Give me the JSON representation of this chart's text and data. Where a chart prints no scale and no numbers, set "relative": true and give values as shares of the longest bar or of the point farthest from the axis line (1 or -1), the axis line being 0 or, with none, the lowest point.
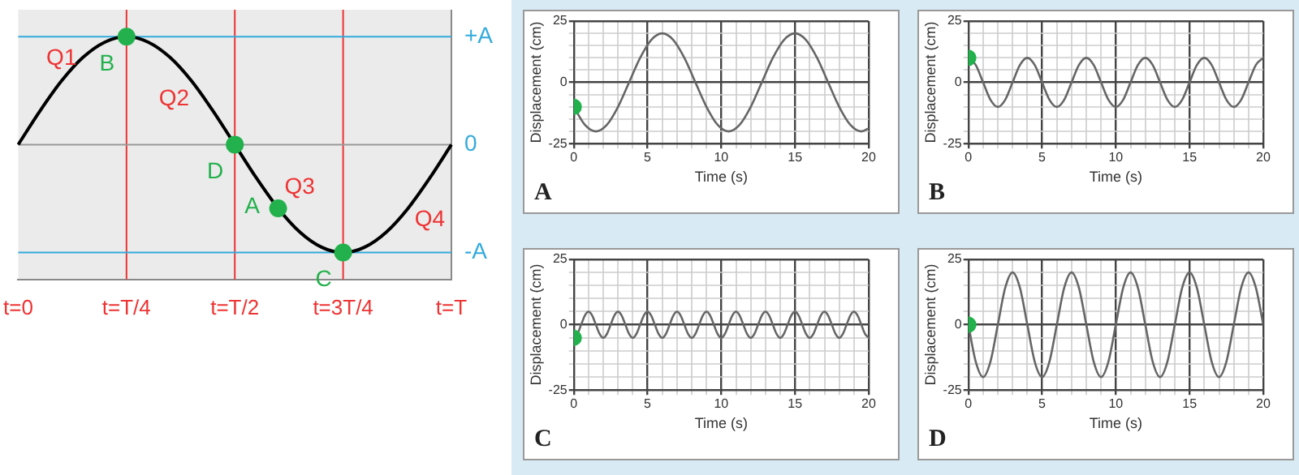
{
  "chart_data": [
    {
      "type": "line",
      "relative": true,
      "categories": [
        "t=0",
        null,
        null,
        null,
        null,
        "t=T/4",
        null,
        null,
        null,
        null,
        "t=T/2",
        null,
        null,
        null,
        null,
        "t=3T/4",
        null,
        null,
        null,
        null,
        "t=T"
      ],
      "series": [
        {
          "color": "#000000",
          "values": [
            0,
            0.31,
            0.59,
            0.81,
            0.95,
            1,
            0.95,
            0.81,
            0.59,
            0.31,
            0,
            -0.31,
            -0.59,
            -0.81,
            -0.95,
            -1,
            -0.95,
            -0.81,
            -0.59,
            -0.31,
            0
          ]
        },
        {
          "type": "scatter",
          "color": "#22b14c",
          "values": [
            null,
            null,
            null,
            null,
            null,
            1,
            null,
            null,
            null,
            null,
            0,
            null,
            -0.59,
            null,
            null,
            -1,
            null,
            null,
            null,
            null,
            null
          ]
        }
      ],
      "ref_lines": [
        {
          "axis": "x",
          "value": "t=T/4",
          "color": "#ee3333"
        },
        {
          "axis": "x",
          "value": "t=T/2",
          "color": "#ee3333"
        },
        {
          "axis": "x",
          "value": "t=3T/4",
          "color": "#ee3333"
        },
        {
          "axis": "y",
          "value": 1,
          "label": "+A",
          "color": "#33aadd"
        },
        {
          "axis": "y",
          "value": 0,
          "label": "0",
          "color": "#999999"
        },
        {
          "axis": "y",
          "value": -1,
          "label": "-A",
          "color": "#33aadd"
        }
      ],
      "annotations": [
        "Q1",
        {
          "text": "B",
          "x": "t=T/4",
          "y": 1
        },
        "Q2",
        {
          "text": "D",
          "x": "t=T/2",
          "y": 0
        },
        "Q3",
        "A",
        {
          "text": "C",
          "x": "t=3T/4",
          "y": -1
        },
        "Q4"
      ]
    },
    {
      "type": "line",
      "title": "A",
      "xlabel": "Time (s)",
      "ylabel": "Displacement (cm)",
      "grid": true,
      "xlim": [
        0,
        20
      ],
      "ylim": [
        -25,
        25
      ],
      "xticks": [
        0,
        {
          "value": 1,
          "label": null
        },
        {
          "value": 2,
          "label": null
        },
        {
          "value": 3,
          "label": null
        },
        {
          "value": 4,
          "label": null
        },
        5,
        {
          "value": 6,
          "label": null
        },
        {
          "value": 7,
          "label": null
        },
        {
          "value": 8,
          "label": null
        },
        {
          "value": 9,
          "label": null
        },
        10,
        {
          "value": 11,
          "label": null
        },
        {
          "value": 12,
          "label": null
        },
        {
          "value": 13,
          "label": null
        },
        {
          "value": 14,
          "label": null
        },
        15,
        {
          "value": 16,
          "label": null
        },
        {
          "value": 17,
          "label": null
        },
        {
          "value": 18,
          "label": null
        },
        {
          "value": 19,
          "label": null
        },
        20
      ],
      "yticks": [
        -25,
        {
          "value": -20,
          "label": null
        },
        {
          "value": -15,
          "label": null
        },
        {
          "value": -10,
          "label": null
        },
        {
          "value": -5,
          "label": null
        },
        0,
        {
          "value": 5,
          "label": null
        },
        {
          "value": 10,
          "label": null
        },
        {
          "value": 15,
          "label": null
        },
        {
          "value": 20,
          "label": null
        },
        25
      ],
      "series": [
        {
          "type": "line",
          "color": "#666666",
          "x": [
            0,
            0.75,
            1.5,
            2.25,
            3,
            3.75,
            4.5,
            5.25,
            6,
            6.75,
            7.5,
            8.25,
            9,
            9.75,
            10.5,
            11.25,
            12,
            12.75,
            13.5,
            14.25,
            15,
            15.75,
            16.5,
            17.25,
            18,
            18.75,
            19.5,
            20
          ],
          "values": [
            -10,
            -17.3,
            -20,
            -17.3,
            -10,
            0,
            10,
            17.3,
            20,
            17.3,
            10,
            0,
            -10,
            -17.3,
            -20,
            -17.3,
            -10,
            0,
            10,
            17.3,
            20,
            17.3,
            10,
            0,
            -10,
            -17.3,
            -20,
            -18.8
          ]
        },
        {
          "type": "scatter",
          "color": "#22b14c",
          "x": [
            0
          ],
          "values": [
            -10
          ]
        }
      ]
    },
    {
      "type": "line",
      "title": "B",
      "xlabel": "Time (s)",
      "ylabel": "Displacement (cm)",
      "grid": true,
      "xlim": [
        0,
        20
      ],
      "ylim": [
        -25,
        25
      ],
      "xticks": [
        0,
        {
          "value": 1,
          "label": null
        },
        {
          "value": 2,
          "label": null
        },
        {
          "value": 3,
          "label": null
        },
        {
          "value": 4,
          "label": null
        },
        5,
        {
          "value": 6,
          "label": null
        },
        {
          "value": 7,
          "label": null
        },
        {
          "value": 8,
          "label": null
        },
        {
          "value": 9,
          "label": null
        },
        10,
        {
          "value": 11,
          "label": null
        },
        {
          "value": 12,
          "label": null
        },
        {
          "value": 13,
          "label": null
        },
        {
          "value": 14,
          "label": null
        },
        15,
        {
          "value": 16,
          "label": null
        },
        {
          "value": 17,
          "label": null
        },
        {
          "value": 18,
          "label": null
        },
        {
          "value": 19,
          "label": null
        },
        20
      ],
      "yticks": [
        -25,
        {
          "value": -20,
          "label": null
        },
        {
          "value": -15,
          "label": null
        },
        {
          "value": -10,
          "label": null
        },
        {
          "value": -5,
          "label": null
        },
        0,
        {
          "value": 5,
          "label": null
        },
        {
          "value": 10,
          "label": null
        },
        {
          "value": 15,
          "label": null
        },
        {
          "value": 20,
          "label": null
        },
        25
      ],
      "series": [
        {
          "type": "line",
          "color": "#666666",
          "x": [
            0,
            0.5,
            1,
            1.5,
            2,
            2.5,
            3,
            3.5,
            4,
            4.5,
            5,
            5.5,
            6,
            6.5,
            7,
            7.5,
            8,
            8.5,
            9,
            9.5,
            10,
            10.5,
            11,
            11.5,
            12,
            12.5,
            13,
            13.5,
            14,
            14.5,
            15,
            15.5,
            16,
            16.5,
            17,
            17.5,
            18,
            18.5,
            19,
            19.5,
            20
          ],
          "values": [
            10,
            7.1,
            0,
            -7.1,
            -10,
            -7.1,
            0,
            7.1,
            10,
            7.1,
            0,
            -7.1,
            -10,
            -7.1,
            0,
            7.1,
            10,
            7.1,
            0,
            -7.1,
            -10,
            -7.1,
            0,
            7.1,
            10,
            7.1,
            0,
            -7.1,
            -10,
            -7.1,
            0,
            7.1,
            10,
            7.1,
            0,
            -7.1,
            -10,
            -7.1,
            0,
            7.1,
            10
          ]
        },
        {
          "type": "scatter",
          "color": "#22b14c",
          "x": [
            0
          ],
          "values": [
            10
          ]
        }
      ]
    },
    {
      "type": "line",
      "title": "C",
      "xlabel": "Time (s)",
      "ylabel": "Displacement (cm)",
      "grid": true,
      "xlim": [
        0,
        20
      ],
      "ylim": [
        -25,
        25
      ],
      "xticks": [
        0,
        {
          "value": 1,
          "label": null
        },
        {
          "value": 2,
          "label": null
        },
        {
          "value": 3,
          "label": null
        },
        {
          "value": 4,
          "label": null
        },
        5,
        {
          "value": 6,
          "label": null
        },
        {
          "value": 7,
          "label": null
        },
        {
          "value": 8,
          "label": null
        },
        {
          "value": 9,
          "label": null
        },
        10,
        {
          "value": 11,
          "label": null
        },
        {
          "value": 12,
          "label": null
        },
        {
          "value": 13,
          "label": null
        },
        {
          "value": 14,
          "label": null
        },
        15,
        {
          "value": 16,
          "label": null
        },
        {
          "value": 17,
          "label": null
        },
        {
          "value": 18,
          "label": null
        },
        {
          "value": 19,
          "label": null
        },
        20
      ],
      "yticks": [
        -25,
        {
          "value": -20,
          "label": null
        },
        {
          "value": -15,
          "label": null
        },
        {
          "value": -10,
          "label": null
        },
        {
          "value": -5,
          "label": null
        },
        0,
        {
          "value": 5,
          "label": null
        },
        {
          "value": 10,
          "label": null
        },
        {
          "value": 15,
          "label": null
        },
        {
          "value": 20,
          "label": null
        },
        25
      ],
      "series": [
        {
          "type": "line",
          "color": "#666666",
          "x": [
            0,
            0.25,
            0.5,
            0.75,
            1,
            1.25,
            1.5,
            1.75,
            2,
            2.25,
            2.5,
            2.75,
            3,
            3.25,
            3.5,
            3.75,
            4,
            4.25,
            4.5,
            4.75,
            5,
            5.25,
            5.5,
            5.75,
            6,
            6.25,
            6.5,
            6.75,
            7,
            7.25,
            7.5,
            7.75,
            8,
            8.25,
            8.5,
            8.75,
            9,
            9.25,
            9.5,
            9.75,
            10,
            10.25,
            10.5,
            10.75,
            11,
            11.25,
            11.5,
            11.75,
            12,
            12.25,
            12.5,
            12.75,
            13,
            13.25,
            13.5,
            13.75,
            14,
            14.25,
            14.5,
            14.75,
            15,
            15.25,
            15.5,
            15.75,
            16,
            16.25,
            16.5,
            16.75,
            17,
            17.25,
            17.5,
            17.75,
            18,
            18.25,
            18.5,
            18.75,
            19,
            19.25,
            19.5,
            19.75,
            20
          ],
          "values": [
            -5,
            -3.5,
            0,
            3.5,
            5,
            3.5,
            0,
            -3.5,
            -5,
            -3.5,
            0,
            3.5,
            5,
            3.5,
            0,
            -3.5,
            -5,
            -3.5,
            0,
            3.5,
            5,
            3.5,
            0,
            -3.5,
            -5,
            -3.5,
            0,
            3.5,
            5,
            3.5,
            0,
            -3.5,
            -5,
            -3.5,
            0,
            3.5,
            5,
            3.5,
            0,
            -3.5,
            -5,
            -3.5,
            0,
            3.5,
            5,
            3.5,
            0,
            -3.5,
            -5,
            -3.5,
            0,
            3.5,
            5,
            3.5,
            0,
            -3.5,
            -5,
            -3.5,
            0,
            3.5,
            5,
            3.5,
            0,
            -3.5,
            -5,
            -3.5,
            0,
            3.5,
            5,
            3.5,
            0,
            -3.5,
            -5,
            -3.5,
            0,
            3.5,
            5,
            3.5,
            0,
            -3.5,
            -5
          ]
        },
        {
          "type": "scatter",
          "color": "#22b14c",
          "x": [
            0
          ],
          "values": [
            -5
          ]
        }
      ]
    },
    {
      "type": "line",
      "title": "D",
      "xlabel": "Time (s)",
      "ylabel": "Displacement (cm)",
      "grid": true,
      "xlim": [
        0,
        20
      ],
      "ylim": [
        -25,
        25
      ],
      "xticks": [
        0,
        {
          "value": 1,
          "label": null
        },
        {
          "value": 2,
          "label": null
        },
        {
          "value": 3,
          "label": null
        },
        {
          "value": 4,
          "label": null
        },
        5,
        {
          "value": 6,
          "label": null
        },
        {
          "value": 7,
          "label": null
        },
        {
          "value": 8,
          "label": null
        },
        {
          "value": 9,
          "label": null
        },
        10,
        {
          "value": 11,
          "label": null
        },
        {
          "value": 12,
          "label": null
        },
        {
          "value": 13,
          "label": null
        },
        {
          "value": 14,
          "label": null
        },
        15,
        {
          "value": 16,
          "label": null
        },
        {
          "value": 17,
          "label": null
        },
        {
          "value": 18,
          "label": null
        },
        {
          "value": 19,
          "label": null
        },
        20
      ],
      "yticks": [
        -25,
        {
          "value": -20,
          "label": null
        },
        {
          "value": -15,
          "label": null
        },
        {
          "value": -10,
          "label": null
        },
        {
          "value": -5,
          "label": null
        },
        0,
        {
          "value": 5,
          "label": null
        },
        {
          "value": 10,
          "label": null
        },
        {
          "value": 15,
          "label": null
        },
        {
          "value": 20,
          "label": null
        },
        25
      ],
      "series": [
        {
          "type": "line",
          "color": "#666666",
          "x": [
            0,
            0.5,
            1,
            1.5,
            2,
            2.5,
            3,
            3.5,
            4,
            4.5,
            5,
            5.5,
            6,
            6.5,
            7,
            7.5,
            8,
            8.5,
            9,
            9.5,
            10,
            10.5,
            11,
            11.5,
            12,
            12.5,
            13,
            13.5,
            14,
            14.5,
            15,
            15.5,
            16,
            16.5,
            17,
            17.5,
            18,
            18.5,
            19,
            19.5,
            20
          ],
          "values": [
            0,
            -14.1,
            -20,
            -14.1,
            0,
            14.1,
            20,
            14.1,
            0,
            -14.1,
            -20,
            -14.1,
            0,
            14.1,
            20,
            14.1,
            0,
            -14.1,
            -20,
            -14.1,
            0,
            14.1,
            20,
            14.1,
            0,
            -14.1,
            -20,
            -14.1,
            0,
            14.1,
            20,
            14.1,
            0,
            -14.1,
            -20,
            -14.1,
            0,
            14.1,
            20,
            14.1,
            0
          ]
        },
        {
          "type": "scatter",
          "color": "#22b14c",
          "x": [
            0
          ],
          "values": [
            0
          ]
        }
      ]
    }
  ]
}
